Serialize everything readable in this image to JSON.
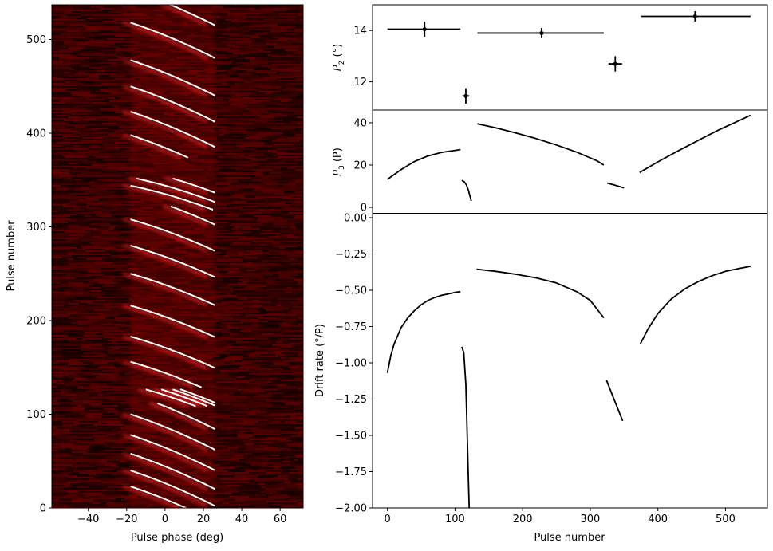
{
  "chart_data": [
    {
      "type": "heatmap",
      "panel": "left",
      "xlabel": "Pulse phase (deg)",
      "ylabel": "Pulse number",
      "xlim": [
        -59,
        72
      ],
      "ylim": [
        0,
        537
      ],
      "xticks": [
        -40,
        -20,
        0,
        20,
        40,
        60
      ],
      "yticks": [
        0,
        100,
        200,
        300,
        400,
        500
      ],
      "colormap": [
        "#000000",
        "#5a0000",
        "#b00000",
        "#ff2020"
      ],
      "emission_window_deg": [
        -18,
        26
      ],
      "drift_bands": [
        {
          "pulse_range": [
            0,
            110
          ],
          "pulses": [
            5,
            22,
            40,
            60,
            82,
            104
          ]
        },
        {
          "pulse_range": [
            110,
            125
          ],
          "pulses": [
            113,
            118,
            122,
            125
          ]
        },
        {
          "pulse_range": [
            130,
            320
          ],
          "pulses": [
            138,
            165,
            198,
            232,
            262,
            290,
            318
          ]
        },
        {
          "pulse_range": [
            320,
            350
          ],
          "pulses": [
            326,
            335,
            345
          ]
        },
        {
          "pulse_range": [
            375,
            537
          ],
          "pulses": [
            380,
            405,
            432,
            460,
            500,
            535
          ]
        }
      ],
      "grid": false
    },
    {
      "type": "scatter",
      "panel": "right-top",
      "xlabel": "",
      "ylabel": "P₂ (°)",
      "ylim": [
        10.9,
        15.0
      ],
      "yticks": [
        12,
        14
      ],
      "points": [
        {
          "x": 55,
          "y": 14.05,
          "xerr_low": 0,
          "xerr_high": 108,
          "yerr": 0.3
        },
        {
          "x": 116,
          "y": 11.45,
          "xerr_low": 111,
          "xerr_high": 121,
          "yerr": 0.3
        },
        {
          "x": 228,
          "y": 13.9,
          "xerr_low": 133,
          "xerr_high": 320,
          "yerr": 0.2
        },
        {
          "x": 337,
          "y": 12.7,
          "xerr_low": 327,
          "xerr_high": 347,
          "yerr": 0.3
        },
        {
          "x": 455,
          "y": 14.55,
          "xerr_low": 375,
          "xerr_high": 537,
          "yerr": 0.2
        }
      ]
    },
    {
      "type": "line",
      "panel": "right-middle",
      "xlabel": "",
      "ylabel": "P₃ (P)",
      "ylim": [
        -3,
        46
      ],
      "yticks": [
        0,
        20,
        40
      ],
      "series": [
        {
          "x": [
            0,
            20,
            40,
            60,
            80,
            108
          ],
          "y": [
            13.2,
            17.8,
            21.7,
            24.3,
            26.0,
            27.3
          ]
        },
        {
          "x": [
            110,
            114,
            117,
            120,
            124
          ],
          "y": [
            12.8,
            12.0,
            10.5,
            7.8,
            3.0
          ]
        },
        {
          "x": [
            133,
            160,
            190,
            220,
            250,
            280,
            310,
            320
          ],
          "y": [
            39.5,
            37.6,
            35.2,
            32.5,
            29.5,
            26.1,
            22.0,
            20.0
          ]
        },
        {
          "x": [
            325,
            335,
            350
          ],
          "y": [
            11.5,
            10.6,
            9.2
          ]
        },
        {
          "x": [
            373,
            400,
            430,
            460,
            490,
            520,
            537
          ],
          "y": [
            16.5,
            21.5,
            26.7,
            31.7,
            36.6,
            41.0,
            43.5
          ]
        }
      ]
    },
    {
      "type": "line",
      "panel": "right-bottom",
      "xlabel": "Pulse number",
      "ylabel": "Drift rate (°/P)",
      "xlim": [
        -22,
        562
      ],
      "ylim": [
        -2.0,
        0.0
      ],
      "xticks": [
        0,
        100,
        200,
        300,
        400,
        500
      ],
      "yticks": [
        0.0,
        -0.25,
        -0.5,
        -0.75,
        -1.0,
        -1.25,
        -1.5,
        -1.75,
        -2.0
      ],
      "series": [
        {
          "x": [
            0,
            5,
            10,
            20,
            30,
            40,
            50,
            60,
            70,
            80,
            90,
            100,
            108
          ],
          "y": [
            -1.07,
            -0.95,
            -0.87,
            -0.76,
            -0.69,
            -0.64,
            -0.6,
            -0.57,
            -0.55,
            -0.535,
            -0.525,
            -0.515,
            -0.51
          ]
        },
        {
          "x": [
            110,
            113,
            116,
            118,
            120,
            121
          ],
          "y": [
            -0.89,
            -0.93,
            -1.15,
            -1.5,
            -1.85,
            -2.0
          ]
        },
        {
          "x": [
            132,
            160,
            190,
            220,
            250,
            280,
            300,
            320
          ],
          "y": [
            -0.355,
            -0.37,
            -0.39,
            -0.415,
            -0.45,
            -0.51,
            -0.57,
            -0.69
          ]
        },
        {
          "x": [
            324,
            335,
            348
          ],
          "y": [
            -1.12,
            -1.25,
            -1.4
          ]
        },
        {
          "x": [
            374,
            385,
            400,
            420,
            440,
            460,
            480,
            500,
            520,
            537
          ],
          "y": [
            -0.87,
            -0.77,
            -0.66,
            -0.56,
            -0.49,
            -0.44,
            -0.4,
            -0.37,
            -0.35,
            -0.335
          ]
        }
      ]
    }
  ],
  "ticks": {
    "phase": [
      "−40",
      "−20",
      "0",
      "20",
      "40",
      "60"
    ],
    "pulse": [
      "0",
      "100",
      "200",
      "300",
      "400",
      "500"
    ],
    "p2": [
      "12",
      "14"
    ],
    "p3": [
      "0",
      "20",
      "40"
    ],
    "drift": [
      "0.00",
      "−0.25",
      "−0.50",
      "−0.75",
      "−1.00",
      "−1.25",
      "−1.50",
      "−1.75",
      "−2.00"
    ]
  },
  "labels": {
    "left_x": "Pulse phase (deg)",
    "left_y": "Pulse number",
    "right_x": "Pulse number",
    "p2_main": "P",
    "p2_sub": "2",
    "p2_unit": " (°)",
    "p3_main": "P",
    "p3_sub": "3",
    "p3_unit": " (P)",
    "drift": "Drift rate (°/P)"
  }
}
